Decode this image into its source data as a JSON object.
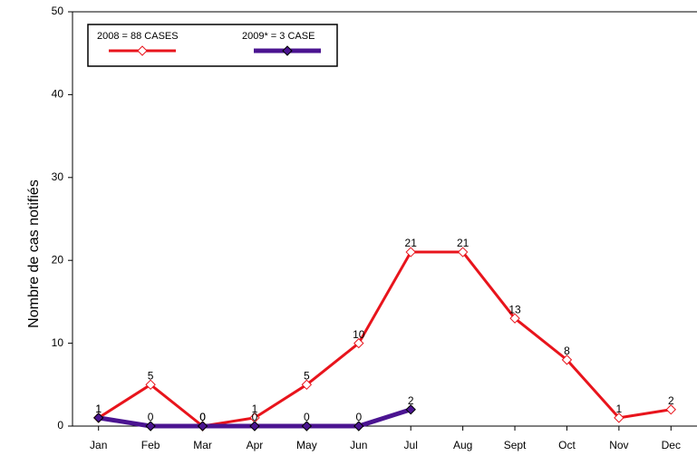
{
  "chart_data": {
    "type": "line",
    "y_label": "Nombre de cas notifiés",
    "categories": [
      "Jan",
      "Feb",
      "Mar",
      "Apr",
      "May",
      "Jun",
      "Jul",
      "Aug",
      "Sept",
      "Oct",
      "Nov",
      "Dec"
    ],
    "series": [
      {
        "name": "2008 = 88 CASES",
        "color": "#e8141c",
        "values": [
          1,
          5,
          0,
          1,
          5,
          10,
          21,
          21,
          13,
          8,
          1,
          2
        ]
      },
      {
        "name": "2009* = 3 CASE",
        "color": "#4b1491",
        "values": [
          1,
          0,
          0,
          0,
          0,
          0,
          2,
          null,
          null,
          null,
          null,
          null
        ]
      }
    ],
    "ylim": [
      0,
      50
    ],
    "yticks": [
      0,
      10,
      20,
      30,
      40,
      50
    ],
    "grid": false,
    "legend": "upper left"
  }
}
